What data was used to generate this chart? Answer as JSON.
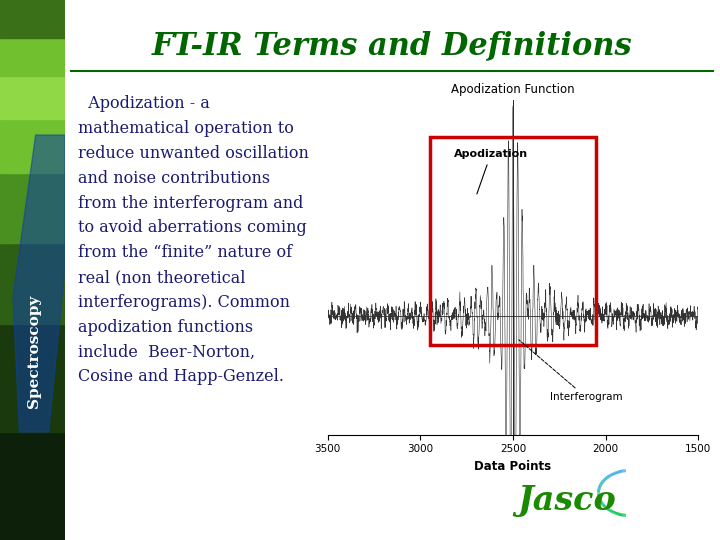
{
  "title": "FT-IR Terms and Definitions",
  "title_color": "#006600",
  "title_fontsize": 22,
  "background_color": "#ffffff",
  "sidebar_text": "Spectroscopy",
  "body_text": "  Apodization - a\nmathematical operation to\nreduce unwanted oscillation\nand noise contributions\nfrom the interferogram and\nto avoid aberrations coming\nfrom the “finite” nature of\nreal (non theoretical\ninterferograms). Common\napodization functions\ninclude  Beer-Norton,\nCosine and Happ-Genzel.",
  "body_text_color": "#1a1a6e",
  "body_fontsize": 11.5,
  "chart_title": "Apodization Function",
  "chart_xlabel": "Data Points",
  "chart_xticks": [
    3500,
    3000,
    2500,
    2000,
    1500
  ],
  "apodization_label": "Apodization",
  "interferogram_label": "Interferogram",
  "red_box_color": "#cc0000",
  "jasco_green": "#1a8a00",
  "jasco_blue": "#4488ff"
}
